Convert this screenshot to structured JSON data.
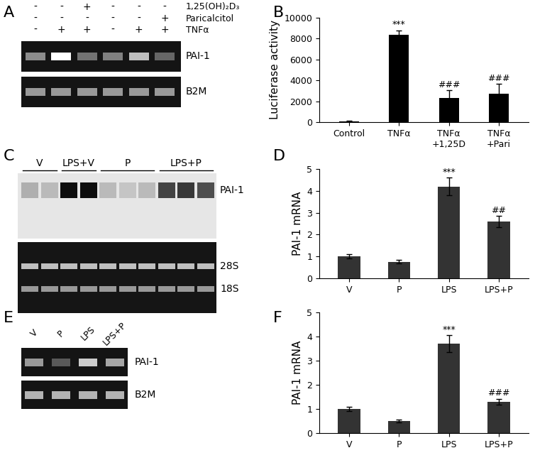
{
  "chart_data": [
    {
      "panel": "B",
      "type": "bar",
      "categories": [
        "Control",
        "TNFα",
        "TNFα\n+1,25D",
        "TNFα\n+Pari"
      ],
      "values": [
        100,
        8400,
        2300,
        2750
      ],
      "errors": [
        30,
        400,
        750,
        900
      ],
      "annotations": [
        null,
        "***",
        "###",
        "###"
      ],
      "color": "#000000",
      "ylabel": "Luciferase activity",
      "ylim": [
        0,
        10000
      ],
      "yticks": [
        0,
        2000,
        4000,
        6000,
        8000,
        10000
      ]
    },
    {
      "panel": "D",
      "type": "bar",
      "categories": [
        "V",
        "P",
        "LPS",
        "LPS+P"
      ],
      "values": [
        1.0,
        0.75,
        4.2,
        2.6
      ],
      "errors": [
        0.1,
        0.08,
        0.4,
        0.25
      ],
      "annotations": [
        null,
        null,
        "***",
        "##"
      ],
      "color": "#333333",
      "ylabel": "PAI-1 mRNA",
      "ylim": [
        0,
        5
      ],
      "yticks": [
        0,
        1,
        2,
        3,
        4,
        5
      ]
    },
    {
      "panel": "F",
      "type": "bar",
      "categories": [
        "V",
        "P",
        "LPS",
        "LPS+P"
      ],
      "values": [
        1.0,
        0.5,
        3.7,
        1.3
      ],
      "errors": [
        0.1,
        0.05,
        0.35,
        0.12
      ],
      "annotations": [
        null,
        null,
        "***",
        "###"
      ],
      "color": "#333333",
      "ylabel": "PAI-1 mRNA",
      "ylim": [
        0,
        5
      ],
      "yticks": [
        0,
        1,
        2,
        3,
        4,
        5
      ]
    }
  ],
  "gels": [
    {
      "panel": "A",
      "treatments": [
        {
          "label": "1,25(OH)₂D₃",
          "signs": [
            "-",
            "-",
            "+",
            "-",
            "-",
            "-"
          ]
        },
        {
          "label": "Paricalcitol",
          "signs": [
            "-",
            "-",
            "-",
            "-",
            "-",
            "+"
          ]
        },
        {
          "label": "TNFα",
          "signs": [
            "-",
            "+",
            "+",
            "-",
            "+",
            "+"
          ]
        }
      ],
      "bands": [
        "PAI-1",
        "B2M"
      ]
    },
    {
      "panel": "C",
      "groups": [
        "V",
        "LPS+V",
        "P",
        "LPS+P"
      ],
      "lanes_per_group": [
        2,
        2,
        3,
        3
      ],
      "bands": [
        "PAI-1",
        "28S",
        "18S"
      ]
    },
    {
      "panel": "E",
      "lanes": [
        "V",
        "P",
        "LPS",
        "LPS+P"
      ],
      "bands": [
        "PAI-1",
        "B2M"
      ]
    }
  ]
}
